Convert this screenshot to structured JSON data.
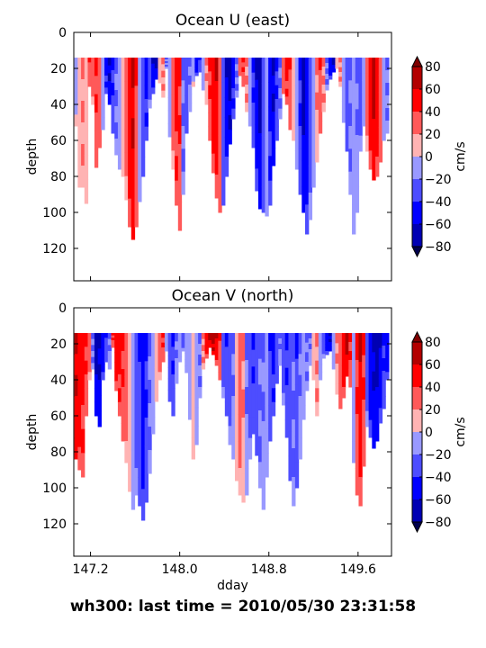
{
  "figure": {
    "suptitle": "wh300: last time = 2010/05/30 23:31:58",
    "xlabel": "dday"
  },
  "chart_data": [
    {
      "type": "heatmap",
      "title": "Ocean U (east)",
      "xlabel": "",
      "ylabel": "depth",
      "xlim": [
        147.05,
        149.9
      ],
      "ylim": [
        138,
        0
      ],
      "yticks": [
        "0",
        "20",
        "40",
        "60",
        "80",
        "100",
        "120"
      ],
      "xticks": [],
      "colorbar": {
        "label": "cm/s",
        "ticks": [
          "80",
          "60",
          "40",
          "20",
          "0",
          "−20",
          "−40",
          "−60",
          "−80"
        ],
        "levels": [
          -80,
          -60,
          -40,
          -20,
          0,
          20,
          40,
          60,
          80
        ],
        "extend": "both"
      },
      "colors": [
        "#0000b3",
        "#0000ff",
        "#4d4dff",
        "#9999ff",
        "#ffb3b3",
        "#ff5959",
        "#ff0000",
        "#b30000"
      ],
      "data_top_depth": 14,
      "profiles": [
        {
          "x": 147.07,
          "bottom": 52,
          "v": -5
        },
        {
          "x": 147.1,
          "bottom": 86,
          "v": 8
        },
        {
          "x": 147.13,
          "bottom": 86,
          "v": 25
        },
        {
          "x": 147.16,
          "bottom": 95,
          "v": 10
        },
        {
          "x": 147.19,
          "bottom": 30,
          "v": 40
        },
        {
          "x": 147.22,
          "bottom": 40,
          "v": 30
        },
        {
          "x": 147.25,
          "bottom": 75,
          "v": 45
        },
        {
          "x": 147.28,
          "bottom": 64,
          "v": 35
        },
        {
          "x": 147.31,
          "bottom": 54,
          "v": -10
        },
        {
          "x": 147.34,
          "bottom": 34,
          "v": -50
        },
        {
          "x": 147.37,
          "bottom": 40,
          "v": -65
        },
        {
          "x": 147.4,
          "bottom": 56,
          "v": -45
        },
        {
          "x": 147.43,
          "bottom": 68,
          "v": -25
        },
        {
          "x": 147.46,
          "bottom": 76,
          "v": -10
        },
        {
          "x": 147.49,
          "bottom": 80,
          "v": 15
        },
        {
          "x": 147.52,
          "bottom": 93,
          "v": 30
        },
        {
          "x": 147.55,
          "bottom": 108,
          "v": 55
        },
        {
          "x": 147.58,
          "bottom": 115,
          "v": 65
        },
        {
          "x": 147.61,
          "bottom": 108,
          "v": 40
        },
        {
          "x": 147.64,
          "bottom": 94,
          "v": -15
        },
        {
          "x": 147.67,
          "bottom": 80,
          "v": -35
        },
        {
          "x": 147.7,
          "bottom": 60,
          "v": -50
        },
        {
          "x": 147.73,
          "bottom": 42,
          "v": -30
        },
        {
          "x": 147.76,
          "bottom": 34,
          "v": -60
        },
        {
          "x": 147.79,
          "bottom": 26,
          "v": -70
        },
        {
          "x": 147.82,
          "bottom": 28,
          "v": 15
        },
        {
          "x": 147.85,
          "bottom": 36,
          "v": 25
        },
        {
          "x": 147.88,
          "bottom": 20,
          "v": -25
        },
        {
          "x": 147.91,
          "bottom": 58,
          "v": -10
        },
        {
          "x": 147.94,
          "bottom": 76,
          "v": 30
        },
        {
          "x": 147.97,
          "bottom": 96,
          "v": 50
        },
        {
          "x": 148.0,
          "bottom": 110,
          "v": 45
        },
        {
          "x": 148.03,
          "bottom": 90,
          "v": -25
        },
        {
          "x": 148.06,
          "bottom": 56,
          "v": -35
        },
        {
          "x": 148.09,
          "bottom": 44,
          "v": -20
        },
        {
          "x": 148.12,
          "bottom": 30,
          "v": -5
        },
        {
          "x": 148.15,
          "bottom": 24,
          "v": -55
        },
        {
          "x": 148.18,
          "bottom": 22,
          "v": -40
        },
        {
          "x": 148.21,
          "bottom": 32,
          "v": -15
        },
        {
          "x": 148.24,
          "bottom": 40,
          "v": 20
        },
        {
          "x": 148.27,
          "bottom": 60,
          "v": 45
        },
        {
          "x": 148.3,
          "bottom": 78,
          "v": 55
        },
        {
          "x": 148.33,
          "bottom": 92,
          "v": 60
        },
        {
          "x": 148.36,
          "bottom": 100,
          "v": 35
        },
        {
          "x": 148.39,
          "bottom": 96,
          "v": -35
        },
        {
          "x": 148.42,
          "bottom": 80,
          "v": -60
        },
        {
          "x": 148.45,
          "bottom": 62,
          "v": -75
        },
        {
          "x": 148.48,
          "bottom": 48,
          "v": -50
        },
        {
          "x": 148.51,
          "bottom": 36,
          "v": -25
        },
        {
          "x": 148.54,
          "bottom": 24,
          "v": 35
        },
        {
          "x": 148.57,
          "bottom": 30,
          "v": 45
        },
        {
          "x": 148.6,
          "bottom": 44,
          "v": 25
        },
        {
          "x": 148.63,
          "bottom": 52,
          "v": -15
        },
        {
          "x": 148.66,
          "bottom": 64,
          "v": -45
        },
        {
          "x": 148.69,
          "bottom": 88,
          "v": -60
        },
        {
          "x": 148.72,
          "bottom": 98,
          "v": -70
        },
        {
          "x": 148.75,
          "bottom": 100,
          "v": -35
        },
        {
          "x": 148.78,
          "bottom": 102,
          "v": -15
        },
        {
          "x": 148.81,
          "bottom": 96,
          "v": -50
        },
        {
          "x": 148.84,
          "bottom": 74,
          "v": -65
        },
        {
          "x": 148.87,
          "bottom": 60,
          "v": -45
        },
        {
          "x": 148.9,
          "bottom": 48,
          "v": -25
        },
        {
          "x": 148.93,
          "bottom": 34,
          "v": 35
        },
        {
          "x": 148.96,
          "bottom": 40,
          "v": 50
        },
        {
          "x": 148.99,
          "bottom": 54,
          "v": 40
        },
        {
          "x": 149.02,
          "bottom": 60,
          "v": 15
        },
        {
          "x": 149.05,
          "bottom": 76,
          "v": -10
        },
        {
          "x": 149.08,
          "bottom": 90,
          "v": -45
        },
        {
          "x": 149.11,
          "bottom": 100,
          "v": -70
        },
        {
          "x": 149.14,
          "bottom": 112,
          "v": -55
        },
        {
          "x": 149.17,
          "bottom": 104,
          "v": -30
        },
        {
          "x": 149.2,
          "bottom": 86,
          "v": -15
        },
        {
          "x": 149.23,
          "bottom": 72,
          "v": 20
        },
        {
          "x": 149.26,
          "bottom": 56,
          "v": 40
        },
        {
          "x": 149.29,
          "bottom": 44,
          "v": 25
        },
        {
          "x": 149.32,
          "bottom": 32,
          "v": -25
        },
        {
          "x": 149.35,
          "bottom": 26,
          "v": -55
        },
        {
          "x": 149.38,
          "bottom": 22,
          "v": -70
        },
        {
          "x": 149.41,
          "bottom": 20,
          "v": 10
        },
        {
          "x": 149.44,
          "bottom": 30,
          "v": 25
        },
        {
          "x": 149.47,
          "bottom": 50,
          "v": -15
        },
        {
          "x": 149.5,
          "bottom": 66,
          "v": -35
        },
        {
          "x": 149.53,
          "bottom": 90,
          "v": -25
        },
        {
          "x": 149.56,
          "bottom": 112,
          "v": -10
        },
        {
          "x": 149.59,
          "bottom": 100,
          "v": -20
        },
        {
          "x": 149.62,
          "bottom": 66,
          "v": -30
        },
        {
          "x": 149.65,
          "bottom": 52,
          "v": -15
        },
        {
          "x": 149.68,
          "bottom": 66,
          "v": 30
        },
        {
          "x": 149.71,
          "bottom": 76,
          "v": 55
        },
        {
          "x": 149.74,
          "bottom": 82,
          "v": 70
        },
        {
          "x": 149.77,
          "bottom": 80,
          "v": 55
        },
        {
          "x": 149.8,
          "bottom": 72,
          "v": 35
        },
        {
          "x": 149.83,
          "bottom": 60,
          "v": -10
        },
        {
          "x": 149.86,
          "bottom": 56,
          "v": -25
        }
      ]
    },
    {
      "type": "heatmap",
      "title": "Ocean V (north)",
      "xlabel": "dday",
      "ylabel": "depth",
      "xlim": [
        147.05,
        149.9
      ],
      "ylim": [
        138,
        0
      ],
      "yticks": [
        "0",
        "20",
        "40",
        "60",
        "80",
        "100",
        "120"
      ],
      "xticks": [
        "147.2",
        "148.0",
        "148.8",
        "149.6"
      ],
      "xtick_values": [
        147.2,
        148.0,
        148.8,
        149.6
      ],
      "colorbar": {
        "label": "cm/s",
        "ticks": [
          "80",
          "60",
          "40",
          "20",
          "0",
          "−20",
          "−40",
          "−60",
          "−80"
        ],
        "levels": [
          -80,
          -60,
          -40,
          -20,
          0,
          20,
          40,
          60,
          80
        ],
        "extend": "both"
      },
      "colors": [
        "#0000b3",
        "#0000ff",
        "#4d4dff",
        "#9999ff",
        "#ffb3b3",
        "#ff5959",
        "#ff0000",
        "#b30000"
      ],
      "data_top_depth": 14,
      "profiles": [
        {
          "x": 147.07,
          "bottom": 84,
          "v": 65
        },
        {
          "x": 147.1,
          "bottom": 90,
          "v": 55
        },
        {
          "x": 147.13,
          "bottom": 94,
          "v": 50
        },
        {
          "x": 147.16,
          "bottom": 60,
          "v": 45
        },
        {
          "x": 147.19,
          "bottom": 40,
          "v": 30
        },
        {
          "x": 147.22,
          "bottom": 34,
          "v": -25
        },
        {
          "x": 147.25,
          "bottom": 60,
          "v": -70
        },
        {
          "x": 147.28,
          "bottom": 66,
          "v": -65
        },
        {
          "x": 147.31,
          "bottom": 40,
          "v": -55
        },
        {
          "x": 147.34,
          "bottom": 30,
          "v": -40
        },
        {
          "x": 147.37,
          "bottom": 34,
          "v": -20
        },
        {
          "x": 147.4,
          "bottom": 22,
          "v": 45
        },
        {
          "x": 147.43,
          "bottom": 46,
          "v": 55
        },
        {
          "x": 147.46,
          "bottom": 60,
          "v": 50
        },
        {
          "x": 147.49,
          "bottom": 74,
          "v": 45
        },
        {
          "x": 147.52,
          "bottom": 86,
          "v": 30
        },
        {
          "x": 147.55,
          "bottom": 102,
          "v": 15
        },
        {
          "x": 147.58,
          "bottom": 112,
          "v": -15
        },
        {
          "x": 147.61,
          "bottom": 104,
          "v": -30
        },
        {
          "x": 147.64,
          "bottom": 110,
          "v": -40
        },
        {
          "x": 147.67,
          "bottom": 118,
          "v": -55
        },
        {
          "x": 147.7,
          "bottom": 108,
          "v": -45
        },
        {
          "x": 147.73,
          "bottom": 92,
          "v": -25
        },
        {
          "x": 147.76,
          "bottom": 70,
          "v": -10
        },
        {
          "x": 147.79,
          "bottom": 52,
          "v": 15
        },
        {
          "x": 147.82,
          "bottom": 40,
          "v": 30
        },
        {
          "x": 147.85,
          "bottom": 30,
          "v": 45
        },
        {
          "x": 147.88,
          "bottom": 24,
          "v": -15
        },
        {
          "x": 147.91,
          "bottom": 52,
          "v": -35
        },
        {
          "x": 147.94,
          "bottom": 60,
          "v": -45
        },
        {
          "x": 147.97,
          "bottom": 42,
          "v": -20
        },
        {
          "x": 148.0,
          "bottom": 30,
          "v": -10
        },
        {
          "x": 148.03,
          "bottom": 24,
          "v": -30
        },
        {
          "x": 148.06,
          "bottom": 36,
          "v": -15
        },
        {
          "x": 148.09,
          "bottom": 62,
          "v": -10
        },
        {
          "x": 148.12,
          "bottom": 84,
          "v": 15
        },
        {
          "x": 148.15,
          "bottom": 76,
          "v": -15
        },
        {
          "x": 148.18,
          "bottom": 50,
          "v": -25
        },
        {
          "x": 148.21,
          "bottom": 34,
          "v": 25
        },
        {
          "x": 148.24,
          "bottom": 28,
          "v": 55
        },
        {
          "x": 148.27,
          "bottom": 22,
          "v": 70
        },
        {
          "x": 148.3,
          "bottom": 26,
          "v": 75
        },
        {
          "x": 148.33,
          "bottom": 32,
          "v": 60
        },
        {
          "x": 148.36,
          "bottom": 40,
          "v": 40
        },
        {
          "x": 148.39,
          "bottom": 50,
          "v": -30
        },
        {
          "x": 148.42,
          "bottom": 60,
          "v": -40
        },
        {
          "x": 148.45,
          "bottom": 76,
          "v": -30
        },
        {
          "x": 148.48,
          "bottom": 84,
          "v": -20
        },
        {
          "x": 148.51,
          "bottom": 96,
          "v": 15
        },
        {
          "x": 148.54,
          "bottom": 104,
          "v": 30
        },
        {
          "x": 148.57,
          "bottom": 108,
          "v": 20
        },
        {
          "x": 148.6,
          "bottom": 104,
          "v": -20
        },
        {
          "x": 148.63,
          "bottom": 84,
          "v": -30
        },
        {
          "x": 148.66,
          "bottom": 70,
          "v": -45
        },
        {
          "x": 148.69,
          "bottom": 82,
          "v": -35
        },
        {
          "x": 148.72,
          "bottom": 100,
          "v": -25
        },
        {
          "x": 148.75,
          "bottom": 112,
          "v": -20
        },
        {
          "x": 148.78,
          "bottom": 94,
          "v": -15
        },
        {
          "x": 148.81,
          "bottom": 74,
          "v": -40
        },
        {
          "x": 148.84,
          "bottom": 60,
          "v": -50
        },
        {
          "x": 148.87,
          "bottom": 42,
          "v": -35
        },
        {
          "x": 148.9,
          "bottom": 32,
          "v": -20
        },
        {
          "x": 148.93,
          "bottom": 54,
          "v": -30
        },
        {
          "x": 148.96,
          "bottom": 72,
          "v": -45
        },
        {
          "x": 148.99,
          "bottom": 96,
          "v": -35
        },
        {
          "x": 149.02,
          "bottom": 110,
          "v": -25
        },
        {
          "x": 149.05,
          "bottom": 100,
          "v": -40
        },
        {
          "x": 149.08,
          "bottom": 84,
          "v": -20
        },
        {
          "x": 149.11,
          "bottom": 62,
          "v": -10
        },
        {
          "x": 149.14,
          "bottom": 46,
          "v": -25
        },
        {
          "x": 149.17,
          "bottom": 32,
          "v": -20
        },
        {
          "x": 149.2,
          "bottom": 40,
          "v": 15
        },
        {
          "x": 149.23,
          "bottom": 60,
          "v": 25
        },
        {
          "x": 149.26,
          "bottom": 40,
          "v": -15
        },
        {
          "x": 149.29,
          "bottom": 28,
          "v": -30
        },
        {
          "x": 149.32,
          "bottom": 26,
          "v": -55
        },
        {
          "x": 149.35,
          "bottom": 24,
          "v": -65
        },
        {
          "x": 149.38,
          "bottom": 34,
          "v": -10
        },
        {
          "x": 149.41,
          "bottom": 48,
          "v": 20
        },
        {
          "x": 149.44,
          "bottom": 56,
          "v": 35
        },
        {
          "x": 149.47,
          "bottom": 50,
          "v": 55
        },
        {
          "x": 149.5,
          "bottom": 38,
          "v": 70
        },
        {
          "x": 149.53,
          "bottom": 44,
          "v": 45
        },
        {
          "x": 149.56,
          "bottom": 86,
          "v": -10
        },
        {
          "x": 149.59,
          "bottom": 104,
          "v": 45
        },
        {
          "x": 149.62,
          "bottom": 110,
          "v": 60
        },
        {
          "x": 149.65,
          "bottom": 88,
          "v": 45
        },
        {
          "x": 149.68,
          "bottom": 66,
          "v": -30
        },
        {
          "x": 149.71,
          "bottom": 72,
          "v": -55
        },
        {
          "x": 149.74,
          "bottom": 78,
          "v": -65
        },
        {
          "x": 149.77,
          "bottom": 74,
          "v": -70
        },
        {
          "x": 149.8,
          "bottom": 64,
          "v": -60
        },
        {
          "x": 149.83,
          "bottom": 56,
          "v": -45
        },
        {
          "x": 149.86,
          "bottom": 40,
          "v": -55
        }
      ]
    }
  ]
}
